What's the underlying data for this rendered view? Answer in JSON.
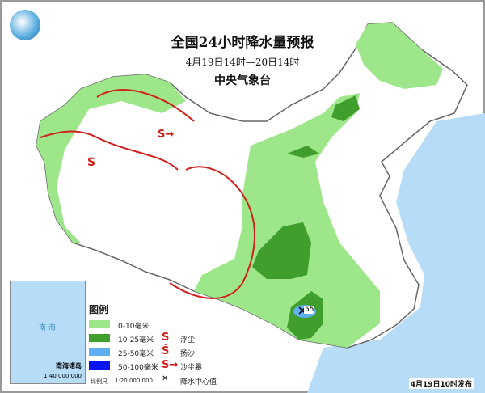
{
  "title": "全国24小时降水量预报",
  "period": "4月19日14时—20日14时",
  "issuer": "中央气象台",
  "issued": "4月19日10时发布",
  "center_value": "55",
  "legend": {
    "title": "图例",
    "items": [
      {
        "label": "0-10毫米",
        "color": "#9ee68a"
      },
      {
        "label": "10-25毫米",
        "color": "#3f9e2c"
      },
      {
        "label": "25-50毫米",
        "color": "#5fb0f0"
      },
      {
        "label": "50-100毫米",
        "color": "#0a14f0"
      }
    ],
    "symbols": [
      {
        "glyph": "S",
        "label": "浮尘"
      },
      {
        "glyph": "Ṡ",
        "label": "扬沙"
      },
      {
        "glyph": "S→",
        "label": "沙尘暴"
      },
      {
        "glyph": "✕",
        "label": "降水中心值"
      }
    ],
    "scale_label": "比例尺",
    "scale": "1:20 000 000"
  },
  "inset": {
    "sea": "南 海",
    "title": "南海诸岛",
    "scale": "1:40 000 000"
  },
  "colors": {
    "sea": "#b6dcf7",
    "front": "#d0201e",
    "land": "#ffffff"
  }
}
